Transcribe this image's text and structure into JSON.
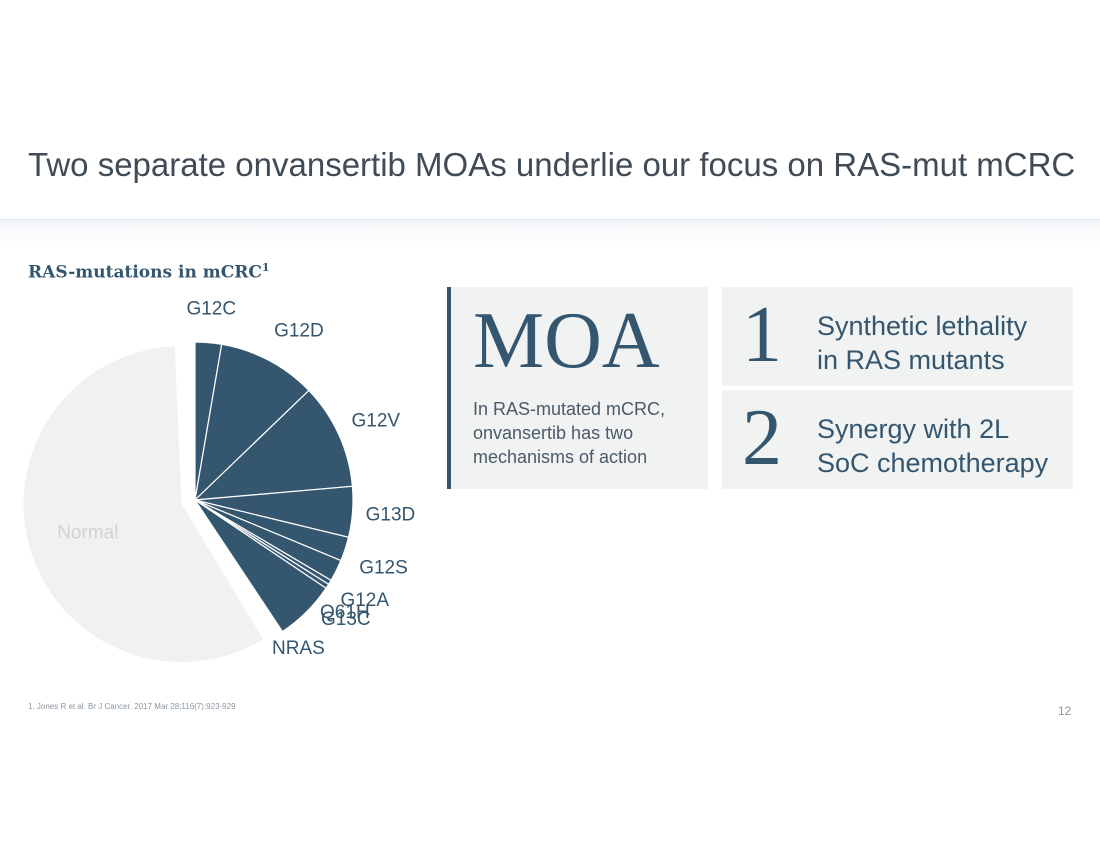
{
  "slide": {
    "title": "Two separate onvansertib MOAs underlie our focus on RAS-mut mCRC",
    "footnote": "1. Jones R et al. Br J Cancer. 2017 Mar 28;116(7):923-929",
    "page_number": "12"
  },
  "chart_heading": {
    "text": "RAS-mutations in mCRC",
    "sup": "1"
  },
  "chart_data": {
    "type": "pie",
    "title": "RAS-mutations in mCRC",
    "categories": [
      "G12C",
      "G12D",
      "G12V",
      "G13D",
      "G12S",
      "G12A",
      "Q61H",
      "G13C",
      "NRAS",
      "Normal"
    ],
    "values": [
      2.3,
      8.6,
      9.2,
      4.4,
      2.1,
      1.9,
      0.4,
      0.4,
      5.3,
      50.5
    ],
    "unit": "%",
    "colors": {
      "mutant": "#34566f",
      "normal": "#f1f1f1",
      "label": "#34566f",
      "normal_label": "#cfd4d8"
    }
  },
  "moa": {
    "heading": "MOA",
    "description_lines": [
      "In RAS-mutated mCRC,",
      "onvansertib has two",
      "mechanisms of action"
    ]
  },
  "mechanisms": [
    {
      "number": "1",
      "line1": "Synthetic lethality",
      "line2": "in RAS mutants"
    },
    {
      "number": "2",
      "line1": "Synergy with 2L",
      "line2": "SoC chemotherapy"
    }
  ]
}
